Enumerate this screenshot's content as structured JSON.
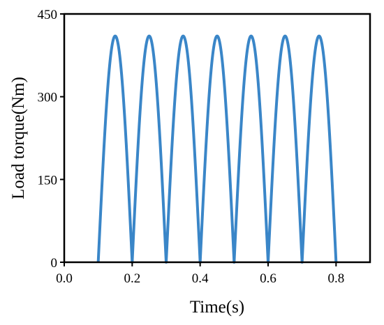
{
  "chart_data": {
    "type": "line",
    "xlabel": "Time(s)",
    "ylabel": "Load torque(Nm)",
    "xlim": [
      0,
      0.9
    ],
    "ylim": [
      0,
      450
    ],
    "xticks": [
      "0.0",
      "0.2",
      "0.4",
      "0.6",
      "0.8"
    ],
    "yticks": [
      "0",
      "150",
      "300",
      "450"
    ],
    "grid": false,
    "series": [
      {
        "color": "#3a86c8",
        "signal": "rectified-sine",
        "start": 0.1,
        "end": 0.8,
        "period": 0.1,
        "amplitude": 410
      }
    ]
  }
}
